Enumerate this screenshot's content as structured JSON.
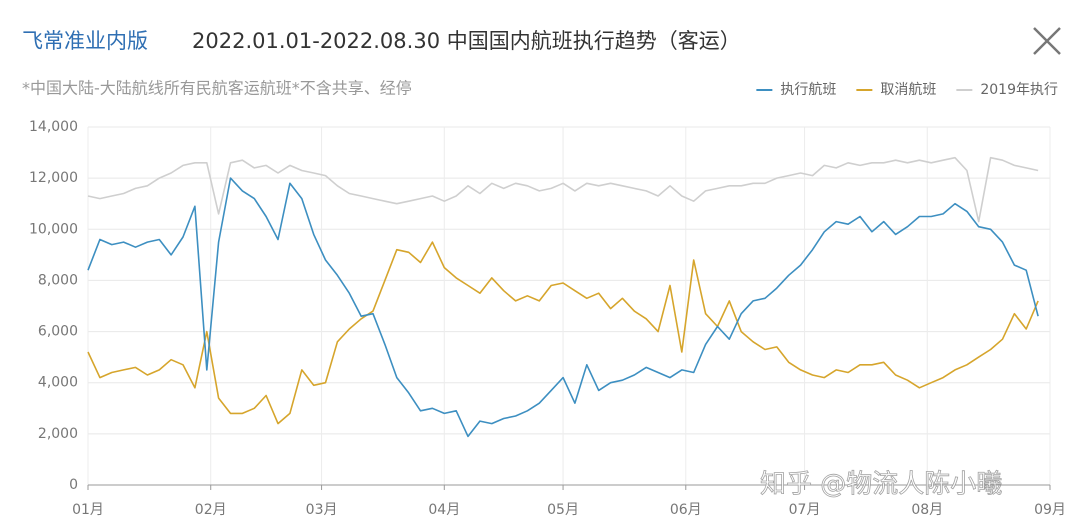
{
  "header": {
    "brand": "飞常准业内版"
  },
  "watermark": "知乎 @物流人陈小曦",
  "chart_data": {
    "type": "line",
    "title": "2022.01.01-2022.08.30 中国国内航班执行趋势（客运）",
    "subtitle": "*中国大陆-大陆航线所有民航客运航班*不含共享、经停",
    "grid": true,
    "legend": "top-right",
    "xlim": [
      0,
      243
    ],
    "xticks": [
      {
        "value": 0,
        "label": "01月"
      },
      {
        "value": 31,
        "label": "02月"
      },
      {
        "value": 59,
        "label": "03月"
      },
      {
        "value": 90,
        "label": "04月"
      },
      {
        "value": 120,
        "label": "05月"
      },
      {
        "value": 151,
        "label": "06月"
      },
      {
        "value": 181,
        "label": "07月"
      },
      {
        "value": 212,
        "label": "08月"
      },
      {
        "value": 243,
        "label": "09月"
      }
    ],
    "ylim": [
      0,
      14000
    ],
    "yticks": [
      0,
      {
        "value": 2000,
        "label": "2,000"
      },
      {
        "value": 4000,
        "label": "4,000"
      },
      {
        "value": 6000,
        "label": "6,000"
      },
      {
        "value": 8000,
        "label": "8,000"
      },
      {
        "value": 10000,
        "label": "10,000"
      },
      {
        "value": 12000,
        "label": "12,000"
      },
      {
        "value": 14000,
        "label": "14,000"
      }
    ],
    "x": [
      0,
      3,
      6,
      9,
      12,
      15,
      18,
      21,
      24,
      27,
      30,
      33,
      36,
      39,
      42,
      45,
      48,
      51,
      54,
      57,
      60,
      63,
      66,
      69,
      72,
      75,
      78,
      81,
      84,
      87,
      90,
      93,
      96,
      99,
      102,
      105,
      108,
      111,
      114,
      117,
      120,
      123,
      126,
      129,
      132,
      135,
      138,
      141,
      144,
      147,
      150,
      153,
      156,
      159,
      162,
      165,
      168,
      171,
      174,
      177,
      180,
      183,
      186,
      189,
      192,
      195,
      198,
      201,
      204,
      207,
      210,
      213,
      216,
      219,
      222,
      225,
      228,
      231,
      234,
      237,
      240
    ],
    "series": [
      {
        "name": "2019年执行",
        "color": "#cfcfcf",
        "values": [
          11300,
          11200,
          11300,
          11400,
          11600,
          11700,
          12000,
          12200,
          12500,
          12600,
          12600,
          10600,
          12600,
          12700,
          12400,
          12500,
          12200,
          12500,
          12300,
          12200,
          12100,
          11700,
          11400,
          11300,
          11200,
          11100,
          11000,
          11100,
          11200,
          11300,
          11100,
          11300,
          11700,
          11400,
          11800,
          11600,
          11800,
          11700,
          11500,
          11600,
          11800,
          11500,
          11800,
          11700,
          11800,
          11700,
          11600,
          11500,
          11300,
          11700,
          11300,
          11100,
          11500,
          11600,
          11700,
          11700,
          11800,
          11800,
          12000,
          12100,
          12200,
          12100,
          12500,
          12400,
          12600,
          12500,
          12600,
          12600,
          12700,
          12600,
          12700,
          12600,
          12700,
          12800,
          12300,
          10300,
          12800,
          12700,
          12500,
          12400,
          12300
        ]
      },
      {
        "name": "取消航班",
        "color": "#d6a52c",
        "values": [
          5200,
          4200,
          4400,
          4500,
          4600,
          4300,
          4500,
          4900,
          4700,
          3800,
          6000,
          3400,
          2800,
          2800,
          3000,
          3500,
          2400,
          2800,
          4500,
          3900,
          4000,
          5600,
          6100,
          6500,
          6800,
          8000,
          9200,
          9100,
          8700,
          9500,
          8500,
          8100,
          7800,
          7500,
          8100,
          7600,
          7200,
          7400,
          7200,
          7800,
          7900,
          7600,
          7300,
          7500,
          6900,
          7300,
          6800,
          6500,
          6000,
          7800,
          5200,
          8800,
          6700,
          6200,
          7200,
          6000,
          5600,
          5300,
          5400,
          4800,
          4500,
          4300,
          4200,
          4500,
          4400,
          4700,
          4700,
          4800,
          4300,
          4100,
          3800,
          4000,
          4200,
          4500,
          4700,
          5000,
          5300,
          5700,
          6700,
          6100,
          7200
        ]
      },
      {
        "name": "执行航班",
        "color": "#3d8fc1",
        "values": [
          8400,
          9600,
          9400,
          9500,
          9300,
          9500,
          9600,
          9000,
          9700,
          10900,
          4500,
          9500,
          12000,
          11500,
          11200,
          10500,
          9600,
          11800,
          11200,
          9800,
          8800,
          8200,
          7500,
          6600,
          6700,
          5500,
          4200,
          3600,
          2900,
          3000,
          2800,
          2900,
          1900,
          2500,
          2400,
          2600,
          2700,
          2900,
          3200,
          3700,
          4200,
          3200,
          4700,
          3700,
          4000,
          4100,
          4300,
          4600,
          4400,
          4200,
          4500,
          4400,
          5500,
          6200,
          5700,
          6700,
          7200,
          7300,
          7700,
          8200,
          8600,
          9200,
          9900,
          10300,
          10200,
          10500,
          9900,
          10300,
          9800,
          10100,
          10500,
          10500,
          10600,
          11000,
          10700,
          10100,
          10000,
          9500,
          8600,
          8400,
          6600
        ]
      }
    ]
  }
}
